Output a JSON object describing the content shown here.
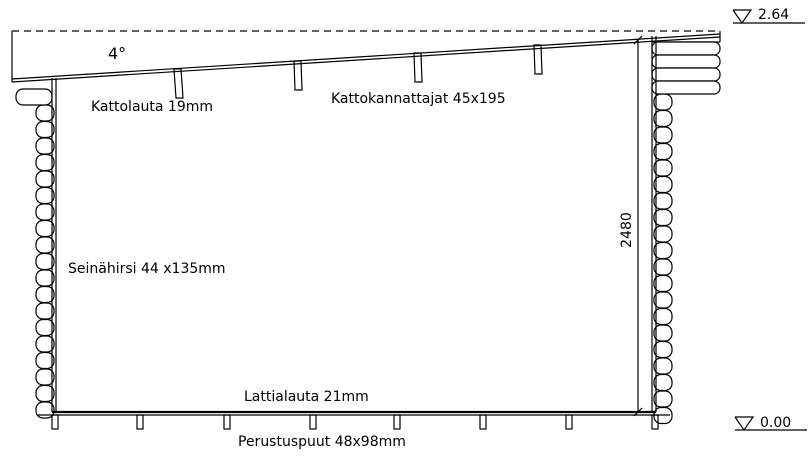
{
  "drawing": {
    "roof_angle_label": "4°",
    "roof_board_label": "Kattolauta  19mm",
    "rafter_label": "Kattokannattajat  45x195",
    "wall_log_label": "Seinähirsi  44 x135mm",
    "floor_board_label": "Lattialauta  21mm",
    "foundation_label": "Perustuspuut  48x98mm",
    "height_dimension": "2480",
    "top_level": "2.64",
    "base_level": "0.00"
  }
}
